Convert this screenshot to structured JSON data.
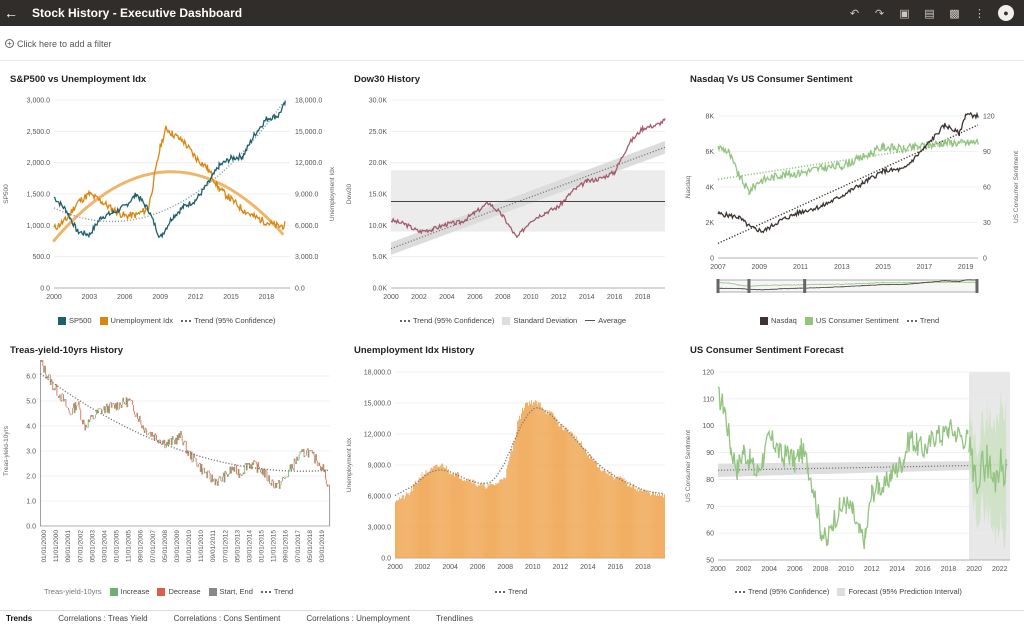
{
  "app": {
    "title": "Stock History - Executive Dashboard",
    "filter_placeholder": "Click here to add a filter",
    "toolbar_icons": [
      "undo-icon",
      "redo-icon",
      "save-icon",
      "comment-icon",
      "present-icon",
      "more-icon"
    ]
  },
  "tabs": [
    "Trends",
    "Correlations : Treas Yield",
    "Correlations : Cons Sentiment",
    "Correlations : Unemployment",
    "Trendlines"
  ],
  "active_tab": 0,
  "colors": {
    "sp500": "#1f5f6b",
    "unemp": "#d9860f",
    "dow": "#a35b6c",
    "nasdaq": "#3e3330",
    "sentiment": "#92c480",
    "increase": "#6fae74",
    "decrease": "#d9604a",
    "bar": "#efa24a",
    "trend": "#666666"
  },
  "chart_data": [
    {
      "id": "sp500",
      "type": "line",
      "title": "S&P500 vs Unemployment Idx",
      "ylabel": "SP500",
      "y2label": "Unemployment Idx",
      "x_ticks": [
        "2000",
        "2003",
        "2006",
        "2009",
        "2012",
        "2015",
        "2018"
      ],
      "y_ticks": [
        "0.0",
        "500.0",
        "1,000.0",
        "1,500.0",
        "2,000.0",
        "2,500.0",
        "3,000.0"
      ],
      "y2_ticks": [
        "0.0",
        "3,000.0",
        "6,000.0",
        "9,000.0",
        "12,000.0",
        "15,000.0",
        "18,000.0"
      ],
      "xlim": [
        2000,
        2020
      ],
      "ylim": [
        0,
        3000
      ],
      "y2lim": [
        0,
        18000
      ],
      "series": [
        {
          "name": "SP500",
          "x": [
            2000,
            2001,
            2002,
            2003,
            2004,
            2005,
            2006,
            2007,
            2008,
            2009,
            2010,
            2011,
            2012,
            2013,
            2014,
            2015,
            2016,
            2017,
            2018,
            2019,
            2019.6
          ],
          "values": [
            1450,
            1250,
            900,
            850,
            1130,
            1200,
            1300,
            1500,
            1250,
            800,
            1120,
            1300,
            1400,
            1650,
            1950,
            2070,
            2100,
            2450,
            2700,
            2750,
            2950
          ]
        },
        {
          "name": "Unemployment Idx",
          "axis": "y2",
          "x": [
            2000,
            2001,
            2002,
            2003,
            2004,
            2005,
            2006,
            2007,
            2008,
            2009,
            2009.5,
            2010,
            2011,
            2012,
            2013,
            2014,
            2015,
            2016,
            2017,
            2018,
            2019,
            2019.6
          ],
          "values": [
            5700,
            6500,
            8200,
            9000,
            8300,
            7500,
            6900,
            7000,
            7600,
            13500,
            15300,
            14800,
            14000,
            12500,
            11500,
            9500,
            8500,
            7500,
            6800,
            6300,
            5900,
            6000
          ]
        }
      ],
      "legend": [
        "SP500",
        "Unemployment Idx",
        "Trend (95% Confidence)"
      ]
    },
    {
      "id": "dow",
      "type": "line",
      "title": "Dow30 History",
      "ylabel": "Dow30",
      "x_ticks": [
        "2000",
        "2002",
        "2004",
        "2006",
        "2008",
        "2010",
        "2012",
        "2014",
        "2016",
        "2018"
      ],
      "y_ticks": [
        "0.0K",
        "5.0K",
        "10.0K",
        "15.0K",
        "20.0K",
        "25.0K",
        "30.0K"
      ],
      "xlim": [
        2000,
        2019.6
      ],
      "ylim": [
        0,
        30000
      ],
      "series": [
        {
          "name": "Dow30",
          "x": [
            2000,
            2001,
            2002,
            2003,
            2004,
            2005,
            2006,
            2007,
            2008,
            2009,
            2010,
            2011,
            2012,
            2013,
            2014,
            2015,
            2016,
            2017,
            2018,
            2019,
            2019.6
          ],
          "values": [
            10800,
            10200,
            9000,
            9400,
            10200,
            10500,
            12000,
            13600,
            11500,
            8000,
            10800,
            12000,
            13000,
            15500,
            17000,
            17500,
            18500,
            23000,
            25500,
            26000,
            26800
          ]
        }
      ],
      "average": 13800,
      "std_band": [
        9000,
        18800
      ],
      "legend": [
        "Trend (95% Confidence)",
        "Standard Deviation",
        "Average"
      ]
    },
    {
      "id": "nasdaq",
      "type": "line",
      "title": "Nasdaq Vs US Consumer Sentiment",
      "ylabel": "Nasdaq",
      "y2label": "US Consumer Sentiment",
      "x_ticks": [
        "2007",
        "2009",
        "2011",
        "2013",
        "2015",
        "2017",
        "2019"
      ],
      "y_ticks": [
        "0",
        "2K",
        "4K",
        "6K",
        "8K"
      ],
      "y2_ticks": [
        "0",
        "30",
        "60",
        "90",
        "120"
      ],
      "xlim": [
        2007,
        2019.6
      ],
      "ylim": [
        0,
        8000
      ],
      "y2lim": [
        0,
        120
      ],
      "series": [
        {
          "name": "Nasdaq",
          "x": [
            2007,
            2008,
            2008.6,
            2009.2,
            2010,
            2011,
            2012,
            2013,
            2014,
            2015,
            2016,
            2017,
            2018,
            2018.7,
            2019,
            2019.6
          ],
          "values": [
            2500,
            2300,
            1700,
            1500,
            2100,
            2600,
            2900,
            3500,
            4200,
            4900,
            5000,
            6200,
            7500,
            7000,
            8100,
            8000
          ]
        },
        {
          "name": "US Consumer Sentiment",
          "axis": "y2",
          "x": [
            2007,
            2007.5,
            2008,
            2008.5,
            2009,
            2010,
            2011,
            2012,
            2013,
            2014,
            2015,
            2016,
            2017,
            2018,
            2019,
            2019.6
          ],
          "values": [
            94,
            90,
            70,
            56,
            65,
            70,
            72,
            76,
            78,
            85,
            94,
            92,
            95,
            98,
            97,
            98
          ]
        }
      ],
      "legend": [
        "Nasdaq",
        "US Consumer Sentiment",
        "Trend"
      ]
    },
    {
      "id": "treas",
      "type": "waterfall",
      "title": "Treas-yield-10yrs History",
      "ylabel": "Treas-yield-10yrs",
      "x_ticks": [
        "01/01/2000",
        "11/01/2000",
        "09/01/2001",
        "07/01/2002",
        "05/01/2003",
        "03/01/2004",
        "01/01/2005",
        "11/01/2005",
        "09/01/2006",
        "07/01/2007",
        "05/01/2008",
        "03/01/2009",
        "01/01/2010",
        "11/01/2010",
        "09/01/2011",
        "07/01/2012",
        "05/01/2013",
        "03/01/2014",
        "01/01/2015",
        "11/01/2015",
        "09/01/2016",
        "07/01/2017",
        "05/01/2018",
        "03/01/2019"
      ],
      "y_ticks": [
        "0.0",
        "1.0",
        "2.0",
        "3.0",
        "4.0",
        "5.0",
        "6.0"
      ],
      "ylim": [
        0,
        6.8
      ],
      "values": [
        6.6,
        6.0,
        5.5,
        5.1,
        4.5,
        4.9,
        4.0,
        4.3,
        4.6,
        4.7,
        4.8,
        4.9,
        5.0,
        4.5,
        3.9,
        3.7,
        3.5,
        3.3,
        3.4,
        3.6,
        2.9,
        2.6,
        2.2,
        1.9,
        1.8,
        2.0,
        2.3,
        2.1,
        2.5,
        2.4,
        2.2,
        1.8,
        1.6,
        1.9,
        2.4,
        2.8,
        3.0,
        2.7,
        2.4,
        1.5
      ],
      "legend_prefix": "Treas-yield-10yrs",
      "legend": [
        "Increase",
        "Decrease",
        "Start, End",
        "Trend"
      ]
    },
    {
      "id": "unemp",
      "type": "bar",
      "title": "Unemployment Idx History",
      "ylabel": "Unemployment Idx",
      "x_ticks": [
        "2000",
        "2002",
        "2004",
        "2006",
        "2008",
        "2010",
        "2012",
        "2014",
        "2016",
        "2018"
      ],
      "y_ticks": [
        "0.0",
        "3,000.0",
        "6,000.0",
        "9,000.0",
        "12,000.0",
        "15,000.0",
        "18,000.0"
      ],
      "xlim": [
        2000,
        2019.6
      ],
      "ylim": [
        0,
        18000
      ],
      "x": [
        2000,
        2000.5,
        2001,
        2001.5,
        2002,
        2002.5,
        2003,
        2003.5,
        2004,
        2004.5,
        2005,
        2005.5,
        2006,
        2006.5,
        2007,
        2007.5,
        2008,
        2008.5,
        2009,
        2009.5,
        2010,
        2010.5,
        2011,
        2011.5,
        2012,
        2012.5,
        2013,
        2013.5,
        2014,
        2014.5,
        2015,
        2015.5,
        2016,
        2016.5,
        2017,
        2017.5,
        2018,
        2018.5,
        2019,
        2019.5
      ],
      "values": [
        5700,
        5800,
        6200,
        7200,
        8100,
        8400,
        8800,
        9000,
        8400,
        8100,
        7700,
        7600,
        7100,
        7000,
        7000,
        7300,
        8000,
        10500,
        13500,
        15000,
        15100,
        14900,
        14200,
        13800,
        12800,
        12400,
        11800,
        11000,
        10000,
        9300,
        8600,
        8200,
        7800,
        7600,
        7100,
        6800,
        6500,
        6300,
        6100,
        6000
      ],
      "legend": [
        "Trend"
      ]
    },
    {
      "id": "sentiment",
      "type": "line",
      "title": "US Consumer Sentiment Forecast",
      "ylabel": "US Consumer Sentiment",
      "x_ticks": [
        "2000",
        "2002",
        "2004",
        "2006",
        "2008",
        "2010",
        "2012",
        "2014",
        "2016",
        "2018",
        "2020",
        "2022"
      ],
      "y_ticks": [
        "50",
        "60",
        "70",
        "80",
        "90",
        "100",
        "110",
        "120"
      ],
      "xlim": [
        2000,
        2022.8
      ],
      "ylim": [
        50,
        120
      ],
      "series": [
        {
          "name": "US Consumer Sentiment",
          "x": [
            2000,
            2000.5,
            2001,
            2001.5,
            2002,
            2002.5,
            2003,
            2003.5,
            2004,
            2004.5,
            2005,
            2005.5,
            2006,
            2006.5,
            2007,
            2007.5,
            2008,
            2008.5,
            2009,
            2009.5,
            2010,
            2010.5,
            2011,
            2011.5,
            2012,
            2012.5,
            2013,
            2013.5,
            2014,
            2014.5,
            2015,
            2015.5,
            2016,
            2016.5,
            2017,
            2017.5,
            2018,
            2018.5,
            2019,
            2019.5
          ],
          "values": [
            111,
            107,
            92,
            84,
            91,
            87,
            82,
            88,
            95,
            93,
            88,
            90,
            86,
            91,
            86,
            76,
            62,
            56,
            65,
            69,
            71,
            68,
            60,
            58,
            75,
            78,
            77,
            82,
            84,
            88,
            96,
            93,
            91,
            93,
            97,
            96,
            99,
            98,
            96,
            95
          ]
        }
      ],
      "forecast_start": 2019.6,
      "forecast": {
        "x": [
          2019.6,
          2020,
          2020.5,
          2021,
          2021.5,
          2022,
          2022.5
        ],
        "values": [
          92,
          80,
          83,
          88,
          79,
          86,
          84
        ]
      },
      "forecast_band": [
        [
          65,
          118
        ],
        [
          55,
          122
        ]
      ],
      "legend": [
        "Trend (95% Confidence)",
        "Forecast (95% Prediction Interval)"
      ]
    }
  ]
}
